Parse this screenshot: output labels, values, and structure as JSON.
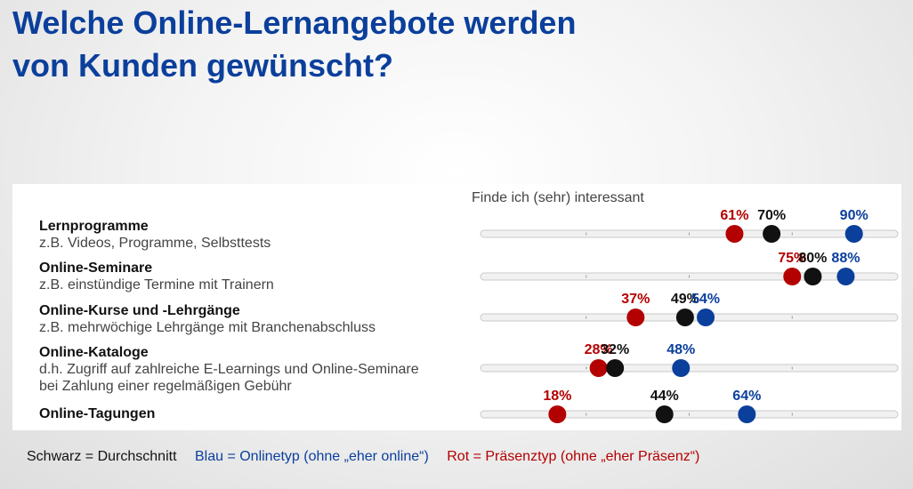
{
  "title": {
    "line1": "Welche Online-Lernangebote werden",
    "line2": "von Kunden gewünscht?"
  },
  "chart_data": {
    "type": "scatter",
    "column_header": "Finde ich (sehr) interessant",
    "xlim": [
      0,
      100
    ],
    "rows": [
      {
        "label": "Lernprogramme",
        "description": [
          "z.B. Videos, Programme, Selbsttests"
        ]
      },
      {
        "label": "Online-Seminare",
        "description": [
          "z.B. einstündige Termine mit Trainern"
        ]
      },
      {
        "label": "Online-Kurse und -Lehrgänge",
        "description": [
          "z.B. mehrwöchige Lehrgänge mit Branchenabschluss"
        ]
      },
      {
        "label": "Online-Kataloge",
        "description": [
          "d.h. Zugriff auf zahlreiche E-Learnings und Online-Seminare",
          "bei Zahlung einer regelmäßigen Gebühr"
        ]
      },
      {
        "label": "Online-Tagungen",
        "description": []
      }
    ],
    "series": [
      {
        "key": "red",
        "color": "#b30000",
        "values": [
          61,
          75,
          37,
          28,
          18
        ]
      },
      {
        "key": "black",
        "color": "#111111",
        "values": [
          70,
          80,
          49,
          32,
          44
        ]
      },
      {
        "key": "blue",
        "color": "#0b3f9c",
        "values": [
          90,
          88,
          54,
          48,
          64
        ]
      }
    ],
    "value_labels": [
      [
        "61%",
        "75%",
        "37%",
        "28%",
        "18%"
      ],
      [
        "70%",
        "80%",
        "49%",
        "32%",
        "44%"
      ],
      [
        "90%",
        "88%",
        "54%",
        "48%",
        "64%"
      ]
    ]
  },
  "legend": {
    "black": "Schwarz = Durchschnitt",
    "blue": "Blau = Onlinetyp (ohne „eher online“)",
    "red": "Rot = Präsenztyp (ohne „eher Präsenz“)"
  }
}
